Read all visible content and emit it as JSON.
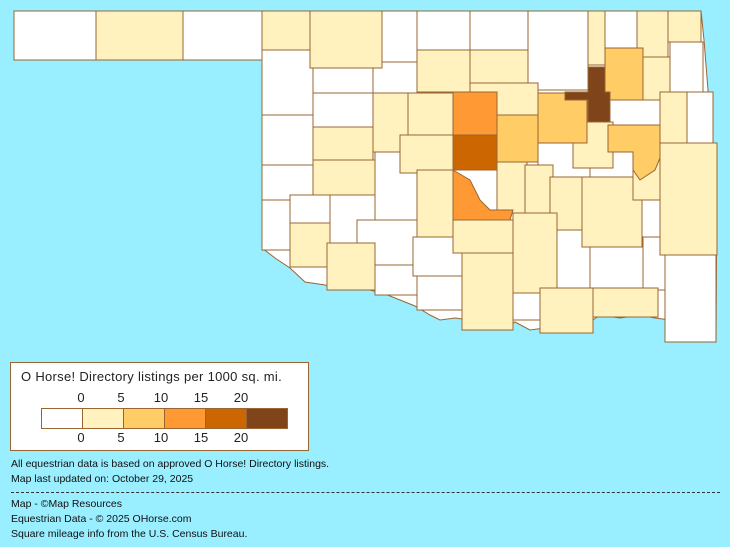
{
  "legend": {
    "title": "O Horse! Directory listings per 1000 sq. mi.",
    "ticks": [
      "0",
      "5",
      "10",
      "15",
      "20"
    ],
    "bins": [
      {
        "range": "0",
        "color": "#FFFFFF"
      },
      {
        "range": "0-5",
        "color": "#FFF2BF"
      },
      {
        "range": "5-10",
        "color": "#FFCC66"
      },
      {
        "range": "10-15",
        "color": "#FF9933"
      },
      {
        "range": "15-20",
        "color": "#CC6600"
      },
      {
        "range": "20+",
        "color": "#7F4419"
      }
    ]
  },
  "notes": {
    "line1": "All equestrian data is based on approved O Horse! Directory listings.",
    "line2": "Map last updated on: October 29, 2025"
  },
  "credits": {
    "line1": "Map - ©Map Resources",
    "line2": "Equestrian Data - © 2025 OHorse.com",
    "line3": "Square mileage info from the U.S. Census Bureau."
  },
  "colors": {
    "background": "#99EEFF",
    "border": "#996633"
  }
}
